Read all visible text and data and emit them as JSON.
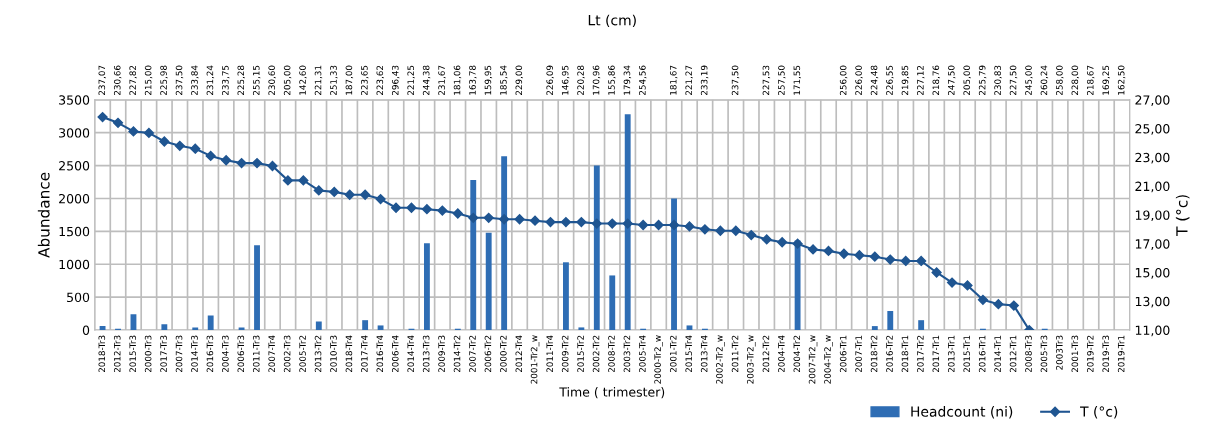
{
  "chart_data": {
    "type": "bar",
    "xlabel": "Time ( trimester)",
    "ylabel": "Abundance",
    "y2label": "T (°c)",
    "x2label": "Lt (cm)",
    "categories": [
      "2018-Tr3",
      "2012-Tr3",
      "2015-Tr3",
      "2000-Tr3",
      "2017-Tr3",
      "2007-Tr3",
      "2014-Tr3",
      "2016-Tr3",
      "2004-Tr3",
      "2006-Tr3",
      "2011-Tr3",
      "2007-Tr4",
      "2002-Tr3",
      "2005-Tr2",
      "2013-Tr2",
      "2010-Tr3",
      "2018-Tr4",
      "2017-Tr4",
      "2016-Tr4",
      "2006-Tr4",
      "2014-Tr4",
      "2013-Tr3",
      "2009-Tr3",
      "2014-Tr2",
      "2007-Tr2",
      "2006-Tr2",
      "2000-Tr2",
      "2012-Tr4",
      "2001-Tr2_w",
      "2011-Tr4",
      "2009-Tr2",
      "2015-Tr2",
      "2002-Tr2",
      "2008-Tr2",
      "2003-Tr2",
      "2005-Tr4",
      "2000-Tr2_w",
      "2001-Tr2",
      "2015-Tr4",
      "2013-Tr4",
      "2002-Tr2_w",
      "2011-Tr2",
      "2003-Tr2_w",
      "2012-Tr2",
      "2004-Tr4",
      "2004-Tr2",
      "2007-Tr2_w",
      "2004-Tr2_w",
      "2006-Tr1",
      "2007-Tr1",
      "2018-Tr2",
      "2016-Tr2",
      "2018-Tr1",
      "2017-Tr2",
      "2017-Tr1",
      "2013-Tr1",
      "2015-Tr1",
      "2016-Tr1",
      "2014-Tr1",
      "2012-Tr1",
      "2008-Tr3",
      "2005-Tr3",
      "2003Tr3",
      "2001-Tr3",
      "2019-Tr2",
      "2019-Tr3",
      "2019-Tr1"
    ],
    "annotations": [
      "237,07",
      "230,66",
      "227,82",
      "215,00",
      "225,98",
      "237,50",
      "233,84",
      "231,24",
      "233,75",
      "225,28",
      "255,15",
      "230,60",
      "205,00",
      "142,60",
      "221,31",
      "251,33",
      "187,00",
      "223,65",
      "223,62",
      "296,43",
      "221,25",
      "244,38",
      "231,67",
      "181,06",
      "163,78",
      "159,95",
      "185,54",
      "229,00",
      null,
      "226,09",
      "146,95",
      "220,28",
      "170,96",
      "155,86",
      "179,34",
      "254,56",
      null,
      "181,67",
      "221,27",
      "233,19",
      null,
      "237,50",
      null,
      "227,53",
      "257,50",
      "171,55",
      null,
      null,
      "256,00",
      "226,00",
      "224,48",
      "226,55",
      "219,85",
      "227,12",
      "218,76",
      "247,50",
      "205,00",
      "225,79",
      "230,83",
      "227,50",
      "245,00",
      "260,24",
      "258,00",
      "228,00",
      "218,67",
      "169,25",
      "162,50"
    ],
    "series": [
      {
        "name": "Headcount (ni)",
        "color": "#2e6db4",
        "values": [
          60,
          20,
          240,
          null,
          90,
          null,
          40,
          220,
          null,
          40,
          1290,
          null,
          null,
          null,
          130,
          null,
          null,
          150,
          70,
          null,
          20,
          1320,
          null,
          20,
          2280,
          1480,
          2640,
          null,
          null,
          null,
          1030,
          40,
          2500,
          830,
          3280,
          20,
          null,
          2000,
          70,
          20,
          null,
          null,
          null,
          null,
          null,
          1360,
          null,
          null,
          null,
          null,
          60,
          290,
          null,
          150,
          null,
          null,
          null,
          20,
          null,
          null,
          null,
          20,
          null,
          null,
          null,
          null,
          null
        ]
      },
      {
        "name": "T (°c)",
        "type": "line",
        "axis": "y2",
        "color": "#1f5591",
        "marker": "diamond",
        "values": [
          25.8,
          25.4,
          24.8,
          24.7,
          24.1,
          23.8,
          23.6,
          23.1,
          22.8,
          22.6,
          22.6,
          22.4,
          21.4,
          21.4,
          20.7,
          20.6,
          20.4,
          20.4,
          20.1,
          19.5,
          19.5,
          19.4,
          19.3,
          19.1,
          18.8,
          18.8,
          18.7,
          18.7,
          18.6,
          18.5,
          18.5,
          18.5,
          18.4,
          18.4,
          18.4,
          18.3,
          18.3,
          18.3,
          18.2,
          18.0,
          17.9,
          17.9,
          17.6,
          17.3,
          17.1,
          17.0,
          16.6,
          16.5,
          16.3,
          16.2,
          16.1,
          15.9,
          15.8,
          15.8,
          15.0,
          14.3,
          14.1,
          13.1,
          12.8,
          12.7,
          11.0,
          null,
          null,
          null,
          null,
          null,
          null
        ]
      }
    ],
    "ylim": [
      0,
      3500
    ],
    "yticks": [
      0,
      500,
      1000,
      1500,
      2000,
      2500,
      3000,
      3500
    ],
    "y2lim": [
      11,
      27
    ],
    "y2ticks": [
      {
        "value": 11,
        "label": "11,00"
      },
      {
        "value": 13,
        "label": "13,00"
      },
      {
        "value": 15,
        "label": "15,00"
      },
      {
        "value": 17,
        "label": "17,00"
      },
      {
        "value": 19,
        "label": "19,00"
      },
      {
        "value": 21,
        "label": "21,00"
      },
      {
        "value": 23,
        "label": "23,00"
      },
      {
        "value": 25,
        "label": "25,00"
      },
      {
        "value": 27,
        "label": "27,00"
      }
    ],
    "grid": true,
    "legend": "bottom right"
  }
}
